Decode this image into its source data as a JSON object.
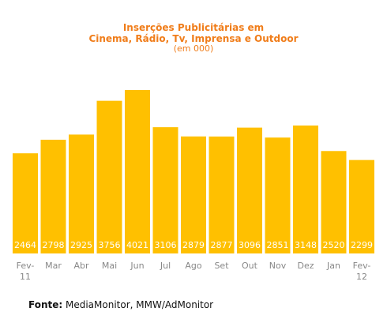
{
  "chart_data": {
    "type": "bar",
    "title_line1": "Inserções Publicitárias em",
    "title_line2": "Cinema, Rádio, Tv, Imprensa e Outdoor",
    "subtitle": "(em 000)",
    "categories": [
      [
        "Fev-",
        "11"
      ],
      [
        "Mar"
      ],
      [
        "Abr"
      ],
      [
        "Mai"
      ],
      [
        "Jun"
      ],
      [
        "Jul"
      ],
      [
        "Ago"
      ],
      [
        "Set"
      ],
      [
        "Out"
      ],
      [
        "Nov"
      ],
      [
        "Dez"
      ],
      [
        "Jan"
      ],
      [
        "Fev-",
        "12"
      ]
    ],
    "values": [
      2464,
      2798,
      2925,
      3756,
      4021,
      3106,
      2879,
      2877,
      3096,
      2851,
      3148,
      2520,
      2299
    ],
    "value_labels": [
      "2464",
      "2798",
      "2925",
      "3756",
      "4021",
      "3106",
      "2879",
      "2877",
      "3096",
      "2851",
      "3148",
      "2520",
      "2299"
    ],
    "ylim": [
      0,
      4500
    ],
    "grid": false,
    "bar_color": "#ffc000",
    "label_color": "#ffffff",
    "tick_color": "#888888"
  },
  "source": {
    "label": "Fonte:",
    "text": " MediaMonitor, MMW/AdMonitor"
  }
}
